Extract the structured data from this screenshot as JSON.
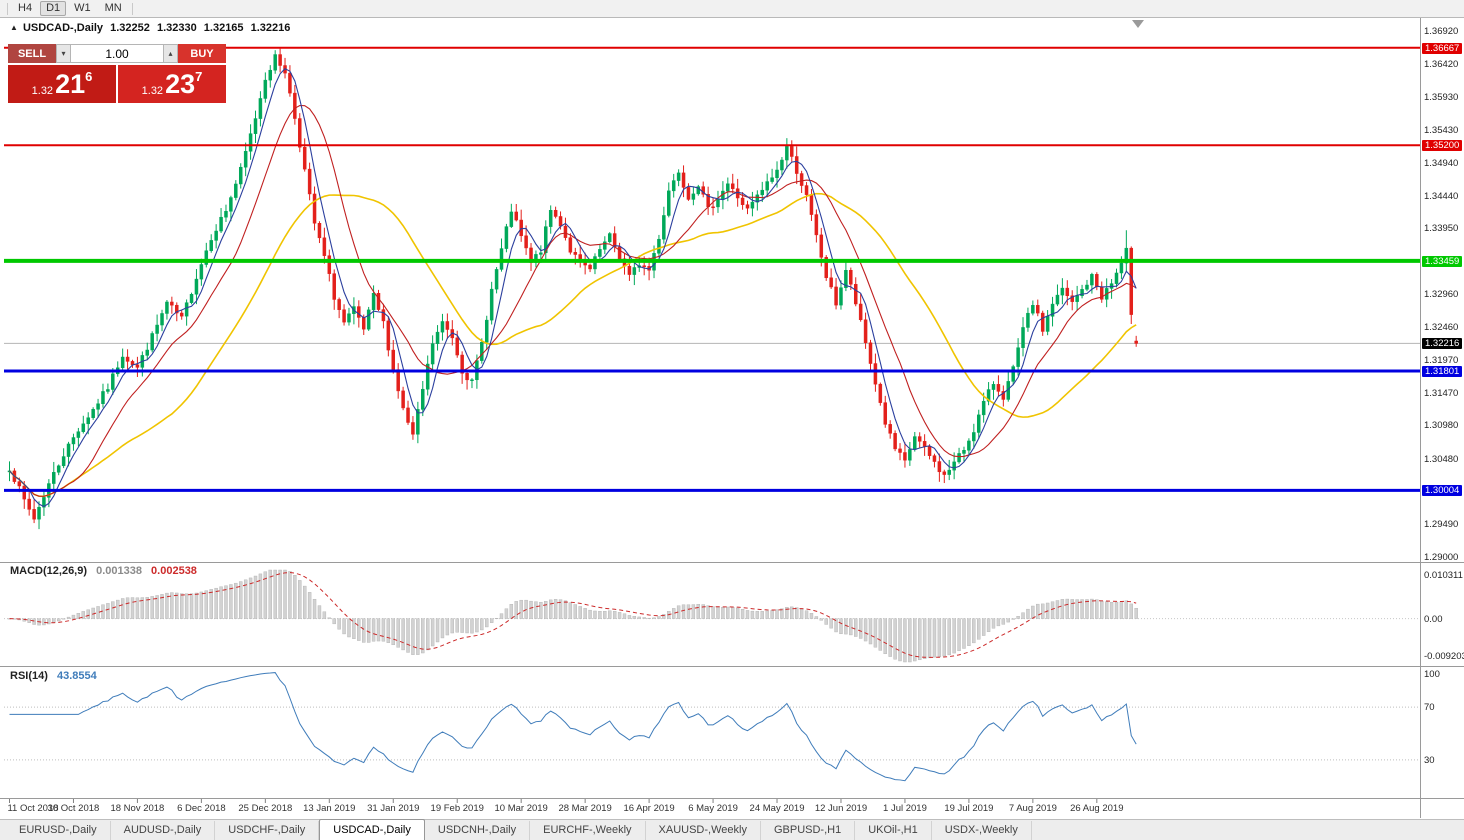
{
  "toolbar": {
    "timeframes": [
      {
        "label": "H4",
        "active": false
      },
      {
        "label": "D1",
        "active": true
      },
      {
        "label": "W1",
        "active": false
      },
      {
        "label": "MN",
        "active": false
      }
    ]
  },
  "chart": {
    "collapse_marker": "▲",
    "symbol_label": "USDCAD-,Daily",
    "ohlc_text": {
      "open": "1.32252",
      "high": "1.32330",
      "low": "1.32165",
      "close": "1.32216"
    }
  },
  "trade_panel": {
    "sell_label": "SELL",
    "buy_label": "BUY",
    "lot_value": "1.00",
    "icons": {
      "down": "▾",
      "up": "▴"
    },
    "sell_price": {
      "prefix": "1.32",
      "big": "21",
      "sup": "6"
    },
    "buy_price": {
      "prefix": "1.32",
      "big": "23",
      "sup": "7"
    }
  },
  "price_axis": {
    "regular": [
      "1.36920",
      "1.36420",
      "1.35930",
      "1.35430",
      "1.34940",
      "1.34440",
      "1.33950",
      "1.33459",
      "1.32960",
      "1.32460",
      "1.31970",
      "1.31470",
      "1.30980",
      "1.30480",
      "1.29990",
      "1.29490",
      "1.29000"
    ],
    "special": [
      {
        "label": "1.36667",
        "price": 1.36667,
        "bg": "#e00000"
      },
      {
        "label": "1.35200",
        "price": 1.352,
        "bg": "#e00000"
      },
      {
        "label": "1.33459",
        "price": 1.33459,
        "bg": "#00c800"
      },
      {
        "label": "1.32216",
        "price": 1.32216,
        "bg": "#000000"
      },
      {
        "label": "1.31801",
        "price": 1.31801,
        "bg": "#0000e0"
      },
      {
        "label": "1.30004",
        "price": 1.30004,
        "bg": "#0000e0"
      }
    ]
  },
  "macd": {
    "name": "MACD(12,26,9)",
    "value_main": "0.001338",
    "value_signal": "0.002538",
    "axis": [
      "0.010311",
      "0.00",
      "-0.0092030"
    ],
    "params": {
      "fast": 12,
      "slow": 26,
      "signal": 9
    }
  },
  "rsi": {
    "name": "RSI(14)",
    "value": "43.8554",
    "axis": [
      "100",
      "70",
      "30"
    ],
    "period": 14,
    "levels": [
      70,
      30
    ]
  },
  "time_axis": {
    "labels": [
      "11 Oct 2018",
      "30 Oct 2018",
      "18 Nov 2018",
      "6 Dec 2018",
      "25 Dec 2018",
      "13 Jan 2019",
      "31 Jan 2019",
      "19 Feb 2019",
      "10 Mar 2019",
      "28 Mar 2019",
      "16 Apr 2019",
      "6 May 2019",
      "24 May 2019",
      "12 Jun 2019",
      "1 Jul 2019",
      "19 Jul 2019",
      "7 Aug 2019",
      "26 Aug 2019"
    ],
    "bar_step": 13
  },
  "tabs": {
    "items": [
      "EURUSD-,Daily",
      "AUDUSD-,Daily",
      "USDCHF-,Daily",
      "USDCAD-,Daily",
      "USDCNH-,Daily",
      "EURCHF-,Weekly",
      "XAUUSD-,Weekly",
      "GBPUSD-,H1",
      "UKOil-,H1",
      "USDX-,Weekly"
    ],
    "active_index": 3
  },
  "colors": {
    "bull": "#00a859",
    "bear": "#e3201b",
    "ma_slow": "#f0c400",
    "ma_mid": "#c02020",
    "ma_fast": "#2b3f9e",
    "hline_red": "#e00000",
    "hline_green": "#00c800",
    "hline_blue": "#0000e0",
    "current_price_line": "#b4b4b4",
    "current_price_bg": "#000000",
    "macd_hist": "#d2d2d2",
    "macd_signal": "#cc2a2a",
    "macd_value_main": "#8a8a8a",
    "rsi_line": "#3f7cba",
    "sell_button": "#b04540",
    "buy_button": "#d8332c",
    "price_box_sell": "#c11b15",
    "price_box_buy": "#d42420"
  },
  "chart_data": {
    "type": "candlestick",
    "symbol": "USDCAD",
    "timeframe": "Daily",
    "bars": 230,
    "current_price": 1.32216,
    "last_bar": {
      "open": 1.32252,
      "high": 1.3233,
      "low": 1.32165,
      "close": 1.32216
    },
    "price_axis_range": {
      "top_label": 1.3692,
      "bottom_label": 1.29
    },
    "horizontal_lines": [
      {
        "price": 1.36667,
        "label": "1.36667",
        "color": "#e00000",
        "width": 2
      },
      {
        "price": 1.352,
        "label": "1.35200",
        "color": "#e00000",
        "width": 2
      },
      {
        "price": 1.33459,
        "label": "1.33459",
        "color": "#00c800",
        "width": 4
      },
      {
        "price": 1.31801,
        "label": "1.31801",
        "color": "#0000e0",
        "width": 3
      },
      {
        "price": 1.30004,
        "label": "1.30004",
        "color": "#0000e0",
        "width": 3
      }
    ],
    "moving_averages": [
      {
        "name": "slow",
        "period": 34,
        "color": "#f0c400"
      },
      {
        "name": "mid",
        "period": 13,
        "color": "#c02020"
      },
      {
        "name": "fast",
        "period": 5,
        "color": "#2b3f9e"
      }
    ],
    "macd_axis": {
      "max": 0.010311,
      "min": -0.009203
    },
    "close_keypoints": [
      [
        0,
        1.3035
      ],
      [
        3,
        1.2985
      ],
      [
        5,
        1.2958
      ],
      [
        8,
        1.301
      ],
      [
        11,
        1.3055
      ],
      [
        14,
        1.3092
      ],
      [
        17,
        1.3122
      ],
      [
        20,
        1.3155
      ],
      [
        23,
        1.3205
      ],
      [
        26,
        1.3185
      ],
      [
        29,
        1.3232
      ],
      [
        32,
        1.3282
      ],
      [
        35,
        1.3258
      ],
      [
        38,
        1.3322
      ],
      [
        41,
        1.3382
      ],
      [
        44,
        1.3422
      ],
      [
        47,
        1.3482
      ],
      [
        50,
        1.3562
      ],
      [
        52,
        1.3622
      ],
      [
        54,
        1.3652
      ],
      [
        56,
        1.3632
      ],
      [
        58,
        1.3562
      ],
      [
        60,
        1.3482
      ],
      [
        62,
        1.3402
      ],
      [
        64,
        1.3352
      ],
      [
        66,
        1.3292
      ],
      [
        68,
        1.3252
      ],
      [
        70,
        1.3272
      ],
      [
        72,
        1.3242
      ],
      [
        74,
        1.3292
      ],
      [
        76,
        1.3252
      ],
      [
        78,
        1.3182
      ],
      [
        80,
        1.3122
      ],
      [
        82,
        1.3082
      ],
      [
        84,
        1.3152
      ],
      [
        86,
        1.3222
      ],
      [
        88,
        1.3252
      ],
      [
        90,
        1.3232
      ],
      [
        92,
        1.3182
      ],
      [
        94,
        1.3162
      ],
      [
        96,
        1.3222
      ],
      [
        98,
        1.3302
      ],
      [
        100,
        1.3362
      ],
      [
        102,
        1.3422
      ],
      [
        104,
        1.3382
      ],
      [
        106,
        1.3342
      ],
      [
        108,
        1.3362
      ],
      [
        110,
        1.3422
      ],
      [
        112,
        1.3402
      ],
      [
        114,
        1.3362
      ],
      [
        116,
        1.3342
      ],
      [
        118,
        1.3332
      ],
      [
        120,
        1.3362
      ],
      [
        122,
        1.3382
      ],
      [
        124,
        1.3352
      ],
      [
        126,
        1.3322
      ],
      [
        128,
        1.3342
      ],
      [
        130,
        1.3332
      ],
      [
        132,
        1.3382
      ],
      [
        134,
        1.3452
      ],
      [
        136,
        1.3482
      ],
      [
        138,
        1.3442
      ],
      [
        140,
        1.3462
      ],
      [
        142,
        1.3422
      ],
      [
        144,
        1.3442
      ],
      [
        146,
        1.3462
      ],
      [
        148,
        1.3442
      ],
      [
        150,
        1.3422
      ],
      [
        152,
        1.3442
      ],
      [
        154,
        1.3462
      ],
      [
        156,
        1.3482
      ],
      [
        158,
        1.3518
      ],
      [
        160,
        1.3482
      ],
      [
        162,
        1.3442
      ],
      [
        164,
        1.3382
      ],
      [
        166,
        1.3322
      ],
      [
        168,
        1.3282
      ],
      [
        170,
        1.3332
      ],
      [
        172,
        1.3282
      ],
      [
        174,
        1.3222
      ],
      [
        176,
        1.3162
      ],
      [
        178,
        1.3102
      ],
      [
        180,
        1.3062
      ],
      [
        182,
        1.3042
      ],
      [
        184,
        1.3082
      ],
      [
        186,
        1.3062
      ],
      [
        188,
        1.3042
      ],
      [
        190,
        1.3022
      ],
      [
        192,
        1.3042
      ],
      [
        194,
        1.3062
      ],
      [
        196,
        1.3092
      ],
      [
        198,
        1.3132
      ],
      [
        200,
        1.3162
      ],
      [
        202,
        1.3142
      ],
      [
        204,
        1.3182
      ],
      [
        206,
        1.3242
      ],
      [
        208,
        1.3282
      ],
      [
        210,
        1.3242
      ],
      [
        212,
        1.3282
      ],
      [
        214,
        1.3302
      ],
      [
        216,
        1.3282
      ],
      [
        218,
        1.3302
      ],
      [
        220,
        1.3322
      ],
      [
        222,
        1.3292
      ],
      [
        224,
        1.3312
      ],
      [
        226,
        1.3342
      ],
      [
        227,
        1.3365
      ],
      [
        228,
        1.3265
      ],
      [
        229,
        1.32216
      ]
    ]
  }
}
